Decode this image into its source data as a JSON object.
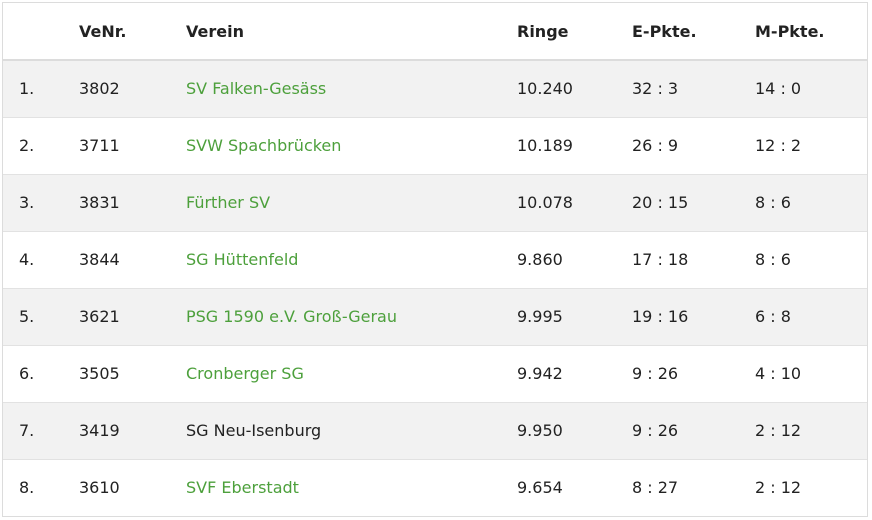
{
  "table": {
    "headers": {
      "rank": "",
      "venr": "VeNr.",
      "club": "Verein",
      "ringe": "Ringe",
      "e_pkte": "E-Pkte.",
      "m_pkte": "M-Pkte."
    },
    "rows": [
      {
        "rank": "1.",
        "venr": "3802",
        "club": "SV Falken-Gesäss",
        "club_link": true,
        "ringe": "10.240",
        "e_pkte": "32 : 3",
        "m_pkte": "14 : 0"
      },
      {
        "rank": "2.",
        "venr": "3711",
        "club": "SVW Spachbrücken",
        "club_link": true,
        "ringe": "10.189",
        "e_pkte": "26 : 9",
        "m_pkte": "12 : 2"
      },
      {
        "rank": "3.",
        "venr": "3831",
        "club": "Fürther SV",
        "club_link": true,
        "ringe": "10.078",
        "e_pkte": "20 : 15",
        "m_pkte": "8 : 6"
      },
      {
        "rank": "4.",
        "venr": "3844",
        "club": "SG Hüttenfeld",
        "club_link": true,
        "ringe": "9.860",
        "e_pkte": "17 : 18",
        "m_pkte": "8 : 6"
      },
      {
        "rank": "5.",
        "venr": "3621",
        "club": "PSG 1590 e.V. Groß-Gerau",
        "club_link": true,
        "ringe": "9.995",
        "e_pkte": "19 : 16",
        "m_pkte": "6 : 8"
      },
      {
        "rank": "6.",
        "venr": "3505",
        "club": "Cronberger SG",
        "club_link": true,
        "ringe": "9.942",
        "e_pkte": "9 : 26",
        "m_pkte": "4 : 10"
      },
      {
        "rank": "7.",
        "venr": "3419",
        "club": "SG Neu-Isenburg",
        "club_link": false,
        "ringe": "9.950",
        "e_pkte": "9 : 26",
        "m_pkte": "2 : 12"
      },
      {
        "rank": "8.",
        "venr": "3610",
        "club": "SVF Eberstadt",
        "club_link": true,
        "ringe": "9.654",
        "e_pkte": "8 : 27",
        "m_pkte": "2 : 12"
      }
    ]
  },
  "colors": {
    "link": "#4da03c",
    "row_stripe": "#f2f2f2",
    "text": "#222222"
  }
}
